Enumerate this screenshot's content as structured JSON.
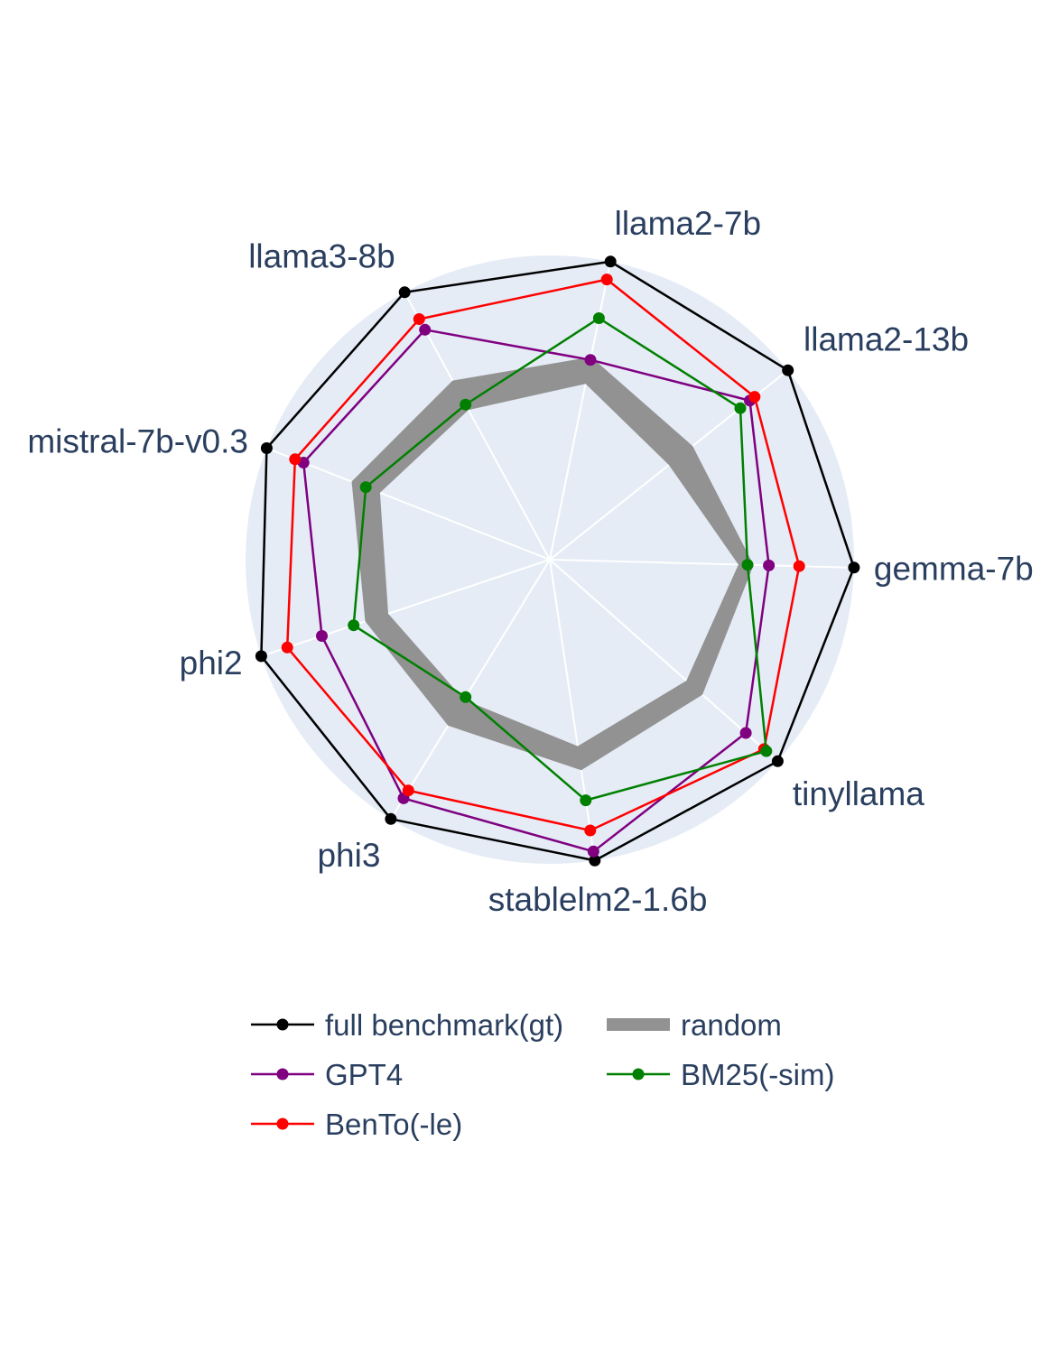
{
  "chart_data": {
    "type": "radar",
    "title": "",
    "categories": [
      "gemma-7b",
      "llama2-13b",
      "llama2-7b",
      "llama3-8b",
      "mistral-7b-v0.3",
      "phi2",
      "phi3",
      "stablelm2-1.6b",
      "tinyllama"
    ],
    "radial_range": [
      0,
      1
    ],
    "grid": true,
    "legend_placement": "bottom",
    "background_color": "#e5ecf6",
    "band": {
      "name": "random",
      "color": "#929292",
      "lower": [
        0.62,
        0.5,
        0.59,
        0.56,
        0.6,
        0.56,
        0.54,
        0.62,
        0.6
      ],
      "upper": [
        0.67,
        0.6,
        0.68,
        0.67,
        0.7,
        0.64,
        0.64,
        0.7,
        0.67
      ]
    },
    "series": [
      {
        "name": "full benchmark(gt)",
        "color": "#000000",
        "values": [
          1.0,
          1.0,
          1.0,
          1.0,
          1.0,
          1.0,
          1.0,
          1.0,
          1.0
        ]
      },
      {
        "name": "GPT4",
        "color": "#800080",
        "values": [
          0.72,
          0.84,
          0.67,
          0.86,
          0.87,
          0.79,
          0.92,
          0.97,
          0.86
        ]
      },
      {
        "name": "BenTo(-le)",
        "color": "#ff0000",
        "values": [
          0.82,
          0.86,
          0.94,
          0.9,
          0.9,
          0.91,
          0.89,
          0.9,
          0.94
        ]
      },
      {
        "name": "BM25(-sim)",
        "color": "#008000",
        "values": [
          0.65,
          0.8,
          0.81,
          0.58,
          0.65,
          0.68,
          0.53,
          0.8,
          0.95
        ]
      }
    ],
    "legend_order": [
      "full benchmark(gt)",
      "random",
      "GPT4",
      "BM25(-sim)",
      "BenTo(-le)"
    ]
  }
}
